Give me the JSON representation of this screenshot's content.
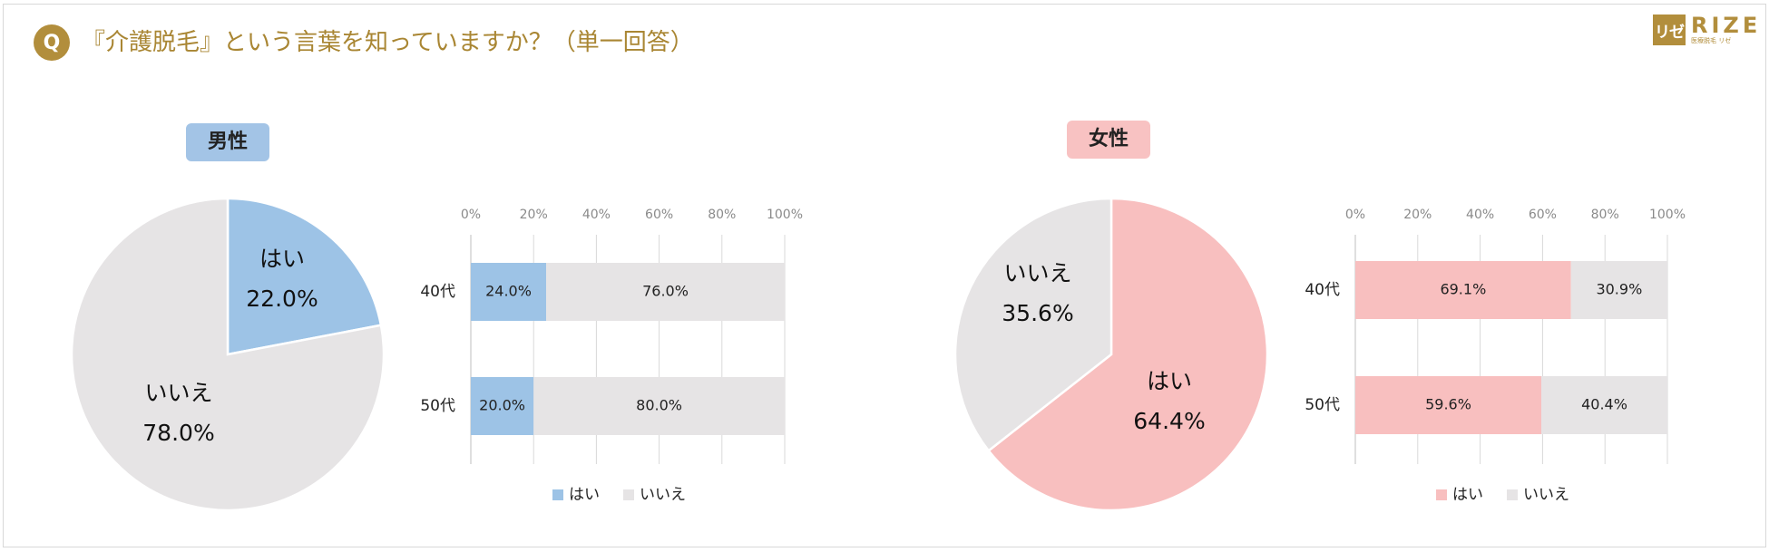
{
  "header": {
    "q_badge": "Q",
    "question": "『介護脱毛』という言葉を知っていますか？（単一回答）"
  },
  "logo": {
    "mark": "リゼ",
    "word": "RIZE",
    "sub": "医療脱毛 リゼ"
  },
  "colors": {
    "accent": "#b28e3c",
    "male_yes": "#9dc3e6",
    "female_yes": "#f8bfbf",
    "no": "#e6e4e5",
    "grid": "#d9d9d9"
  },
  "chart_data": [
    {
      "type": "pie",
      "panel": "男性",
      "categories": [
        "はい",
        "いいえ"
      ],
      "values": [
        22.0,
        78.0
      ],
      "labels": [
        "22.0%",
        "78.0%"
      ]
    },
    {
      "type": "bar",
      "orientation": "horizontal-stacked",
      "panel": "男性",
      "categories": [
        "40代",
        "50代"
      ],
      "series": [
        {
          "name": "はい",
          "values": [
            24.0,
            20.0
          ]
        },
        {
          "name": "いいえ",
          "values": [
            76.0,
            80.0
          ]
        }
      ],
      "labels": [
        [
          "24.0%",
          "76.0%"
        ],
        [
          "20.0%",
          "80.0%"
        ]
      ],
      "xlim": [
        0,
        100
      ],
      "ticks": [
        "0%",
        "20%",
        "40%",
        "60%",
        "80%",
        "100%"
      ],
      "legend": "bottom"
    },
    {
      "type": "pie",
      "panel": "女性",
      "categories": [
        "はい",
        "いいえ"
      ],
      "values": [
        64.4,
        35.6
      ],
      "labels": [
        "64.4%",
        "35.6%"
      ]
    },
    {
      "type": "bar",
      "orientation": "horizontal-stacked",
      "panel": "女性",
      "categories": [
        "40代",
        "50代"
      ],
      "series": [
        {
          "name": "はい",
          "values": [
            69.1,
            59.6
          ]
        },
        {
          "name": "いいえ",
          "values": [
            30.9,
            40.4
          ]
        }
      ],
      "labels": [
        [
          "69.1%",
          "30.9%"
        ],
        [
          "59.6%",
          "40.4%"
        ]
      ],
      "xlim": [
        0,
        100
      ],
      "ticks": [
        "0%",
        "20%",
        "40%",
        "60%",
        "80%",
        "100%"
      ],
      "legend": "bottom"
    }
  ]
}
